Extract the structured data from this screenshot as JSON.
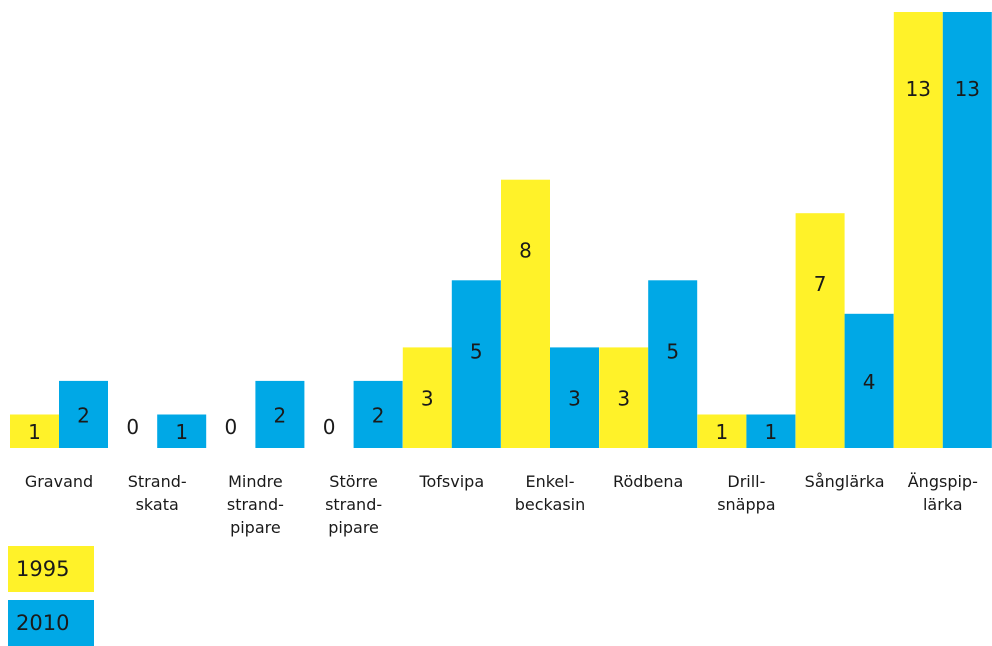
{
  "chart_data": {
    "type": "bar",
    "title": "",
    "xlabel": "",
    "ylabel": "",
    "ylim": [
      0,
      13
    ],
    "grid": false,
    "legend_placement": "bottom-left",
    "colors": {
      "1995": "#FFF229",
      "2010": "#00A8E6"
    },
    "categories": [
      [
        "Gravand"
      ],
      [
        "Strand-",
        "skata"
      ],
      [
        "Mindre",
        "strand-",
        "pipare"
      ],
      [
        "Större",
        "strand-",
        "pipare"
      ],
      [
        "Tofsvipa"
      ],
      [
        "Enkel-",
        "beckasin"
      ],
      [
        "Rödbena"
      ],
      [
        "Drill-",
        "snäppa"
      ],
      [
        "Sånglärka"
      ],
      [
        "Ängspip-",
        "lärka"
      ]
    ],
    "series": [
      {
        "name": "1995",
        "values": [
          1,
          0,
          0,
          0,
          3,
          8,
          3,
          1,
          7,
          13
        ]
      },
      {
        "name": "2010",
        "values": [
          2,
          1,
          2,
          2,
          5,
          3,
          5,
          1,
          4,
          13
        ]
      }
    ]
  }
}
